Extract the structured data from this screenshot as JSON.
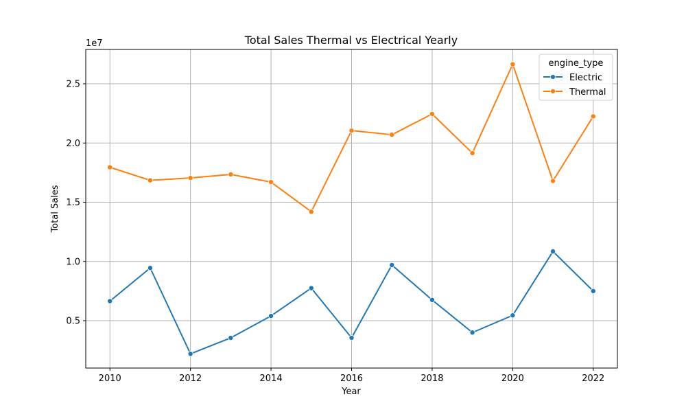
{
  "chart_data": {
    "type": "line",
    "title": "Total Sales Thermal vs Electrical Yearly",
    "xlabel": "Year",
    "ylabel": "Total Sales",
    "y_scale_label": "1e7",
    "x": [
      2010,
      2011,
      2012,
      2013,
      2014,
      2015,
      2016,
      2017,
      2018,
      2019,
      2020,
      2021,
      2022
    ],
    "x_ticks": [
      "2010",
      "2012",
      "2014",
      "2016",
      "2018",
      "2020",
      "2022"
    ],
    "y_ticks": [
      "0.5",
      "1.0",
      "1.5",
      "2.0",
      "2.5"
    ],
    "xlim": [
      2009.4,
      2022.6
    ],
    "ylim": [
      1000000,
      27900000
    ],
    "grid": true,
    "legend_title": "engine_type",
    "legend_position": "top-right",
    "series": [
      {
        "name": "Electric",
        "color": "#1f77b4",
        "values": [
          6650000,
          9450000,
          2200000,
          3550000,
          5400000,
          7750000,
          3550000,
          9700000,
          6750000,
          4000000,
          5450000,
          10850000,
          7500000
        ]
      },
      {
        "name": "Thermal",
        "color": "#ff7f0e",
        "values": [
          17950000,
          16850000,
          17050000,
          17350000,
          16700000,
          14200000,
          21050000,
          20700000,
          22450000,
          19150000,
          26650000,
          16800000,
          22250000
        ]
      }
    ]
  }
}
